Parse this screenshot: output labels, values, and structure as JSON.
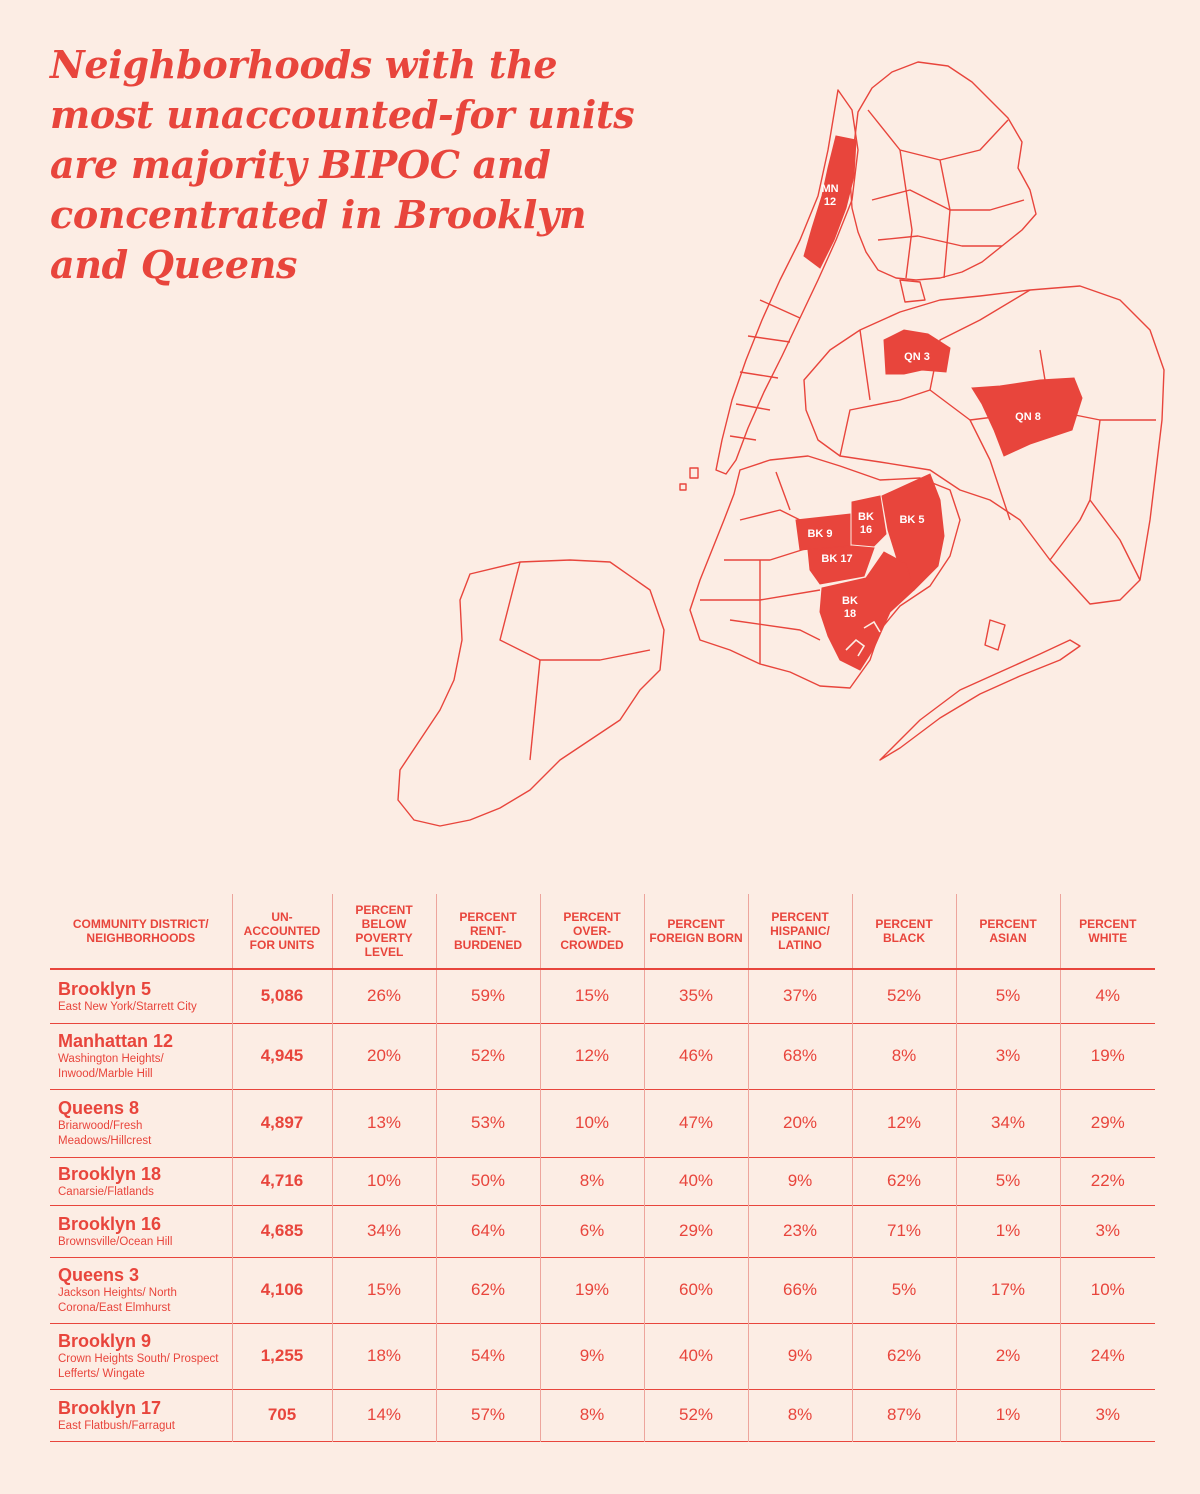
{
  "title_lines": [
    "Neighborhoods with the",
    "most unaccounted-for units",
    "are majority BIPOC and",
    "concentrated in Brooklyn",
    "and Queens"
  ],
  "colors": {
    "accent": "#e8453c",
    "background": "#fcede4",
    "label": "#ffffff"
  },
  "map": {
    "highlighted_districts": [
      {
        "id": "mn12",
        "label_lines": [
          "MN",
          "12"
        ]
      },
      {
        "id": "qn3",
        "label_lines": [
          "QN 3"
        ]
      },
      {
        "id": "qn8",
        "label_lines": [
          "QN 8"
        ]
      },
      {
        "id": "bk9",
        "label_lines": [
          "BK 9"
        ]
      },
      {
        "id": "bk16",
        "label_lines": [
          "BK",
          "16"
        ]
      },
      {
        "id": "bk5",
        "label_lines": [
          "BK 5"
        ]
      },
      {
        "id": "bk17",
        "label_lines": [
          "BK 17"
        ]
      },
      {
        "id": "bk18",
        "label_lines": [
          "BK",
          "18"
        ]
      }
    ]
  },
  "table": {
    "headers": [
      "COMMUNITY DISTRICT/ NEIGHBORHOODS",
      "UN- ACCOUNTED FOR UNITS",
      "PERCENT BELOW POVERTY LEVEL",
      "PERCENT RENT- BURDENED",
      "PERCENT OVER- CROWDED",
      "PERCENT FOREIGN BORN",
      "PERCENT HISPANIC/ LATINO",
      "PERCENT BLACK",
      "PERCENT ASIAN",
      "PERCENT WHITE"
    ],
    "rows": [
      {
        "district": "Brooklyn 5",
        "neighborhoods": "East New York/Starrett City",
        "units": "5,086",
        "poverty": "26%",
        "rent": "59%",
        "crowded": "15%",
        "foreign": "35%",
        "hispanic": "37%",
        "black": "52%",
        "asian": "5%",
        "white": "4%"
      },
      {
        "district": "Manhattan 12",
        "neighborhoods": "Washington Heights/ Inwood/Marble Hill",
        "units": "4,945",
        "poverty": "20%",
        "rent": "52%",
        "crowded": "12%",
        "foreign": "46%",
        "hispanic": "68%",
        "black": "8%",
        "asian": "3%",
        "white": "19%"
      },
      {
        "district": "Queens 8",
        "neighborhoods": "Briarwood/Fresh Meadows/Hillcrest",
        "units": "4,897",
        "poverty": "13%",
        "rent": "53%",
        "crowded": "10%",
        "foreign": "47%",
        "hispanic": "20%",
        "black": "12%",
        "asian": "34%",
        "white": "29%"
      },
      {
        "district": "Brooklyn 18",
        "neighborhoods": "Canarsie/Flatlands",
        "units": "4,716",
        "poverty": "10%",
        "rent": "50%",
        "crowded": "8%",
        "foreign": "40%",
        "hispanic": "9%",
        "black": "62%",
        "asian": "5%",
        "white": "22%"
      },
      {
        "district": "Brooklyn 16",
        "neighborhoods": "Brownsville/Ocean Hill",
        "units": "4,685",
        "poverty": "34%",
        "rent": "64%",
        "crowded": "6%",
        "foreign": "29%",
        "hispanic": "23%",
        "black": "71%",
        "asian": "1%",
        "white": "3%"
      },
      {
        "district": "Queens 3",
        "neighborhoods": "Jackson Heights/ North Corona/East Elmhurst",
        "units": "4,106",
        "poverty": "15%",
        "rent": "62%",
        "crowded": "19%",
        "foreign": "60%",
        "hispanic": "66%",
        "black": "5%",
        "asian": "17%",
        "white": "10%"
      },
      {
        "district": "Brooklyn 9",
        "neighborhoods": "Crown Heights South/ Prospect Lefferts/ Wingate",
        "units": "1,255",
        "poverty": "18%",
        "rent": "54%",
        "crowded": "9%",
        "foreign": "40%",
        "hispanic": "9%",
        "black": "62%",
        "asian": "2%",
        "white": "24%"
      },
      {
        "district": "Brooklyn 17",
        "neighborhoods": "East Flatbush/Farragut",
        "units": "705",
        "poverty": "14%",
        "rent": "57%",
        "crowded": "8%",
        "foreign": "52%",
        "hispanic": "8%",
        "black": "87%",
        "asian": "1%",
        "white": "3%"
      }
    ]
  }
}
